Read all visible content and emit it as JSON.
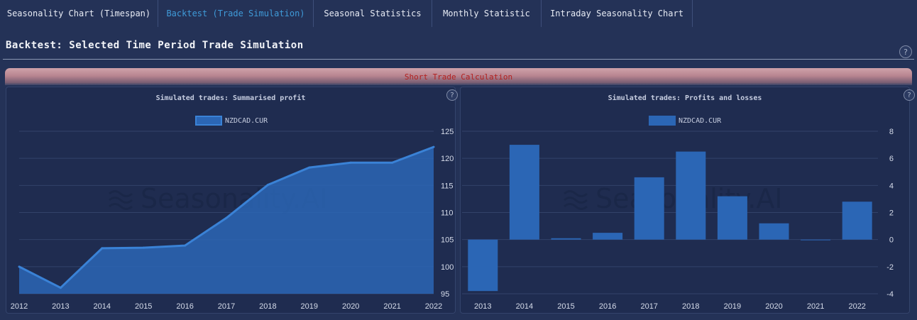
{
  "tabs": [
    {
      "label": "Seasonality Chart (Timespan)",
      "active": false
    },
    {
      "label": "Backtest (Trade Simulation)",
      "active": true
    },
    {
      "label": "Seasonal Statistics",
      "active": false
    },
    {
      "label": "Monthly Statistic",
      "active": false
    },
    {
      "label": "Intraday Seasonality Chart",
      "active": false
    }
  ],
  "page_title": "Backtest: Selected Time Period Trade Simulation",
  "help_glyph": "?",
  "banner_label": "Short Trade Calculation",
  "watermark": "Seasonality.AI",
  "colors": {
    "accent": "#3f9ad8",
    "bar": "#2b66b5",
    "area_line": "#3a82d6",
    "banner_text": "#b3201f"
  },
  "chart_data": [
    {
      "type": "area",
      "title": "Simulated trades: Summarised profit",
      "legend": [
        "NZDCAD.CUR"
      ],
      "x": [
        "2012",
        "2013",
        "2014",
        "2015",
        "2016",
        "2017",
        "2018",
        "2019",
        "2020",
        "2021",
        "2022"
      ],
      "series": [
        {
          "name": "NZDCAD.CUR",
          "values": [
            100.0,
            96.1,
            103.4,
            103.5,
            103.9,
            109.0,
            115.1,
            118.3,
            119.2,
            119.2,
            122.1
          ]
        }
      ],
      "ylim": [
        95,
        125
      ],
      "yticks": [
        95,
        100,
        105,
        110,
        115,
        120,
        125
      ],
      "grid": true,
      "legend_position": "top-center"
    },
    {
      "type": "bar",
      "title": "Simulated trades: Profits and losses",
      "legend": [
        "NZDCAD.CUR"
      ],
      "categories": [
        "2013",
        "2014",
        "2015",
        "2016",
        "2017",
        "2018",
        "2019",
        "2020",
        "2021",
        "2022"
      ],
      "series": [
        {
          "name": "NZDCAD.CUR",
          "values": [
            -3.8,
            7.0,
            0.1,
            0.5,
            4.6,
            6.5,
            3.2,
            1.2,
            0.0,
            2.8
          ]
        }
      ],
      "ylim": [
        -4,
        8
      ],
      "yticks": [
        -4,
        -2,
        0,
        2,
        4,
        6,
        8
      ],
      "grid": true,
      "legend_position": "top-center"
    }
  ]
}
